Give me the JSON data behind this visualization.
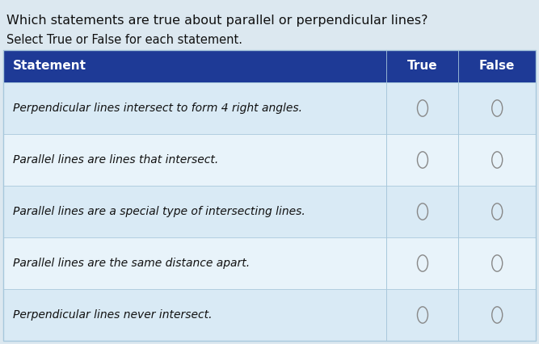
{
  "title_line1": "Which statements are true about parallel or perpendicular lines?",
  "title_line2": "Select True or False for each statement.",
  "header": [
    "Statement",
    "True",
    "False"
  ],
  "rows": [
    "Perpendicular lines intersect to form 4 right angles.",
    "Parallel lines are lines that intersect.",
    "Parallel lines are a special type of intersecting lines.",
    "Parallel lines are the same distance apart.",
    "Perpendicular lines never intersect."
  ],
  "header_bg": "#1e3a96",
  "header_text_color": "#ffffff",
  "row_bg_light": "#d9eaf5",
  "row_bg_lighter": "#e8f3fa",
  "border_color": "#a8c8dc",
  "page_bg": "#dce8f0",
  "circle_color": "#888888",
  "text_color": "#111111",
  "title_text_color": "#111111",
  "fig_width": 6.67,
  "fig_height": 4.26,
  "dpi": 100
}
